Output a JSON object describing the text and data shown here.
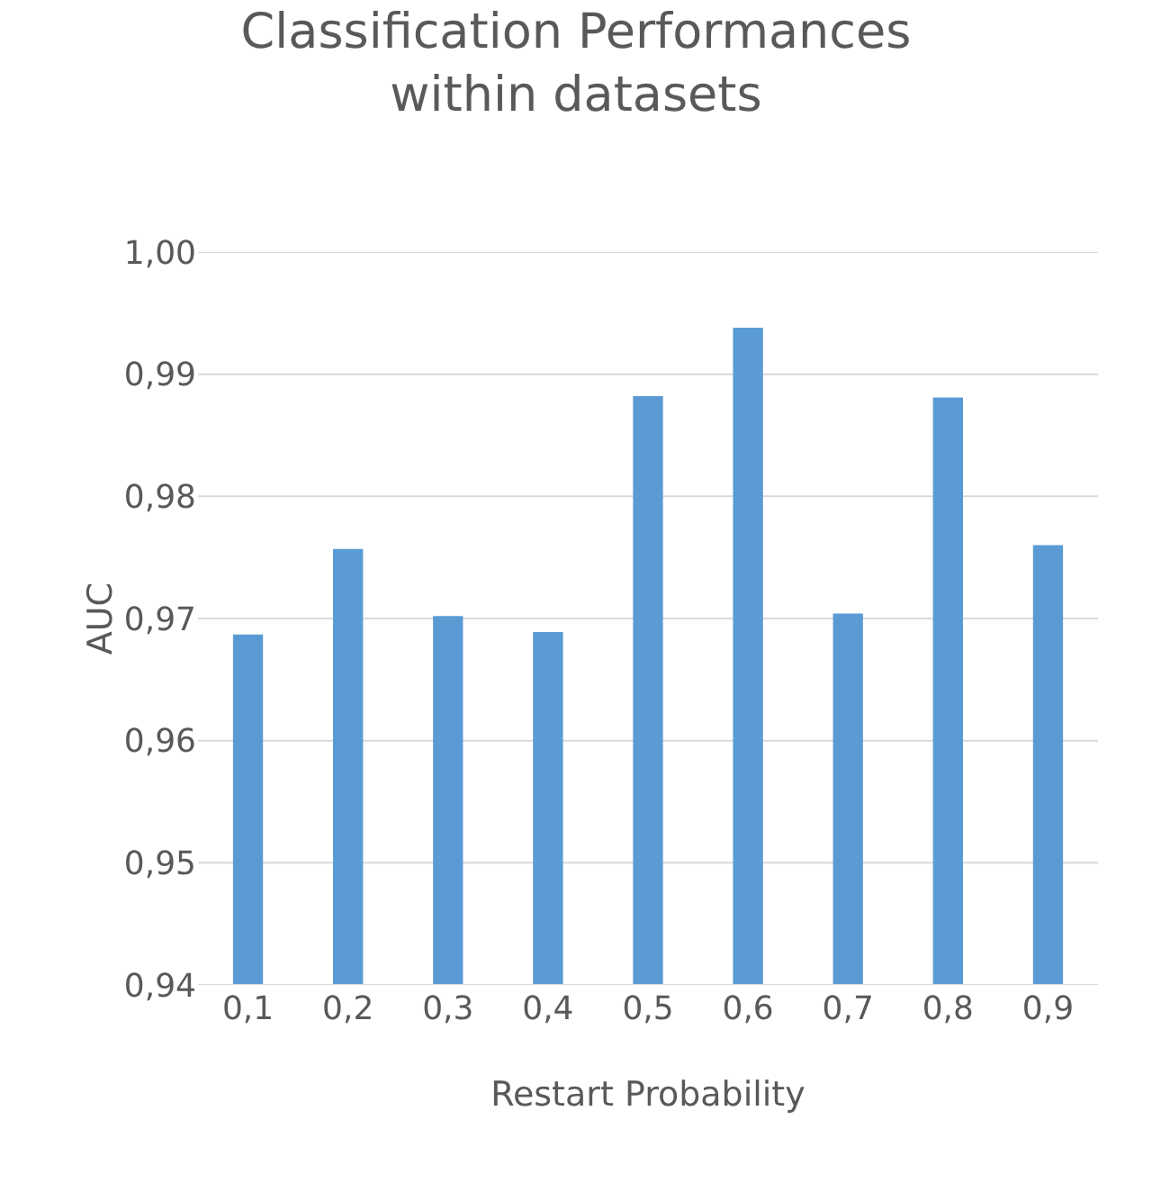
{
  "chart_data": {
    "type": "bar",
    "title": "Classification Performances\nwithin datasets",
    "xlabel": "Restart Probability",
    "ylabel": "AUC",
    "categories": [
      "0,1",
      "0,2",
      "0,3",
      "0,4",
      "0,5",
      "0,6",
      "0,7",
      "0,8",
      "0,9"
    ],
    "values": [
      0.9687,
      0.9757,
      0.9702,
      0.9689,
      0.9882,
      0.9938,
      0.9704,
      0.9881,
      0.976
    ],
    "color": "#5b9bd5",
    "ylim": [
      0.94,
      1.0
    ],
    "yticks": [
      {
        "value": 0.94,
        "label": "0,94"
      },
      {
        "value": 0.95,
        "label": "0,95"
      },
      {
        "value": 0.96,
        "label": "0,96"
      },
      {
        "value": 0.97,
        "label": "0,97"
      },
      {
        "value": 0.98,
        "label": "0,98"
      },
      {
        "value": 0.99,
        "label": "0,99"
      },
      {
        "value": 1.0,
        "label": "1,00"
      }
    ],
    "grid": "y",
    "legend": false
  }
}
